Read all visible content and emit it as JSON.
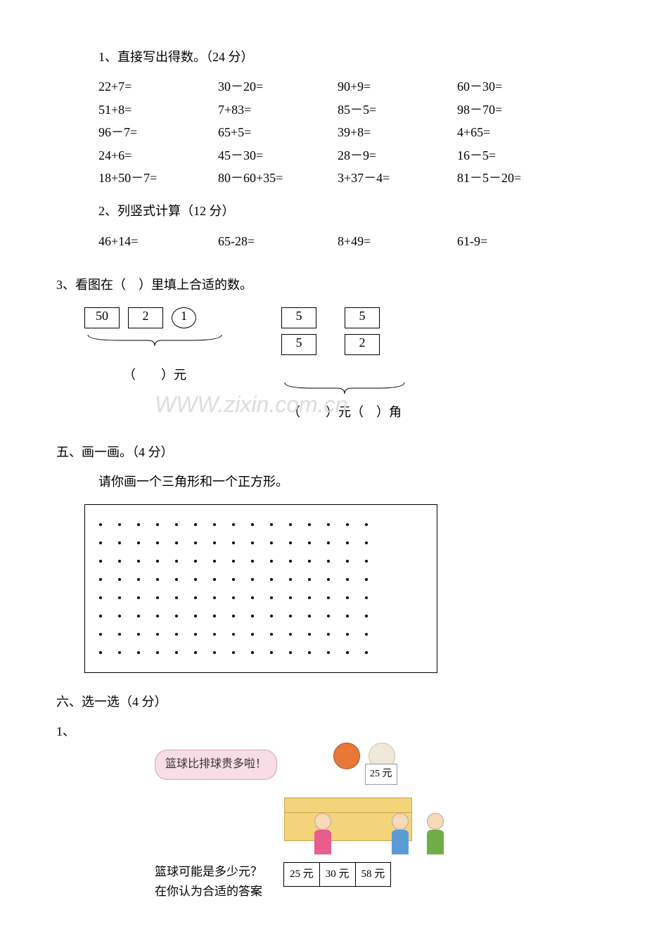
{
  "q1": {
    "title": "1、直接写出得数。（24 分）",
    "rows": [
      [
        "22+7=",
        "30－20=",
        "90+9=",
        "60－30="
      ],
      [
        "51+8=",
        "7+83=",
        "85－5=",
        "98－70="
      ],
      [
        "96－7=",
        "65+5=",
        "39+8=",
        "4+65="
      ],
      [
        "24+6=",
        "45－30=",
        "28－9=",
        "16－5="
      ],
      [
        "18+50－7=",
        "80－60+35=",
        "3+37－4=",
        "81－5－20="
      ]
    ]
  },
  "q2": {
    "title": "2、列竖式计算（12 分）",
    "items": [
      "46+14=",
      "65-28=",
      "8+49=",
      "61-9="
    ]
  },
  "q3": {
    "title": "3、看图在（　）里填上合适的数。",
    "left_boxes": [
      "50",
      "2",
      "1"
    ],
    "left_answer": "（　　）元",
    "right_top": [
      "5",
      "5"
    ],
    "right_bot": [
      "5",
      "2"
    ],
    "right_answer": "（　　）元（　）角"
  },
  "watermark": "WWW.zixin.com.cn",
  "q5": {
    "title": "五、画一画。（4 分）",
    "instruction": "请你画一个三角形和一个正方形。",
    "grid_rows": 8,
    "grid_cols": 15
  },
  "q6": {
    "title": "六、选一选（4 分）",
    "sub": "1、",
    "speech": "篮球比排球贵多啦！",
    "price_tag": "25 元",
    "question_l1": "篮球可能是多少元？",
    "question_l2": "在你认为合适的答案",
    "options": [
      "25 元",
      "30 元",
      "58 元"
    ]
  }
}
